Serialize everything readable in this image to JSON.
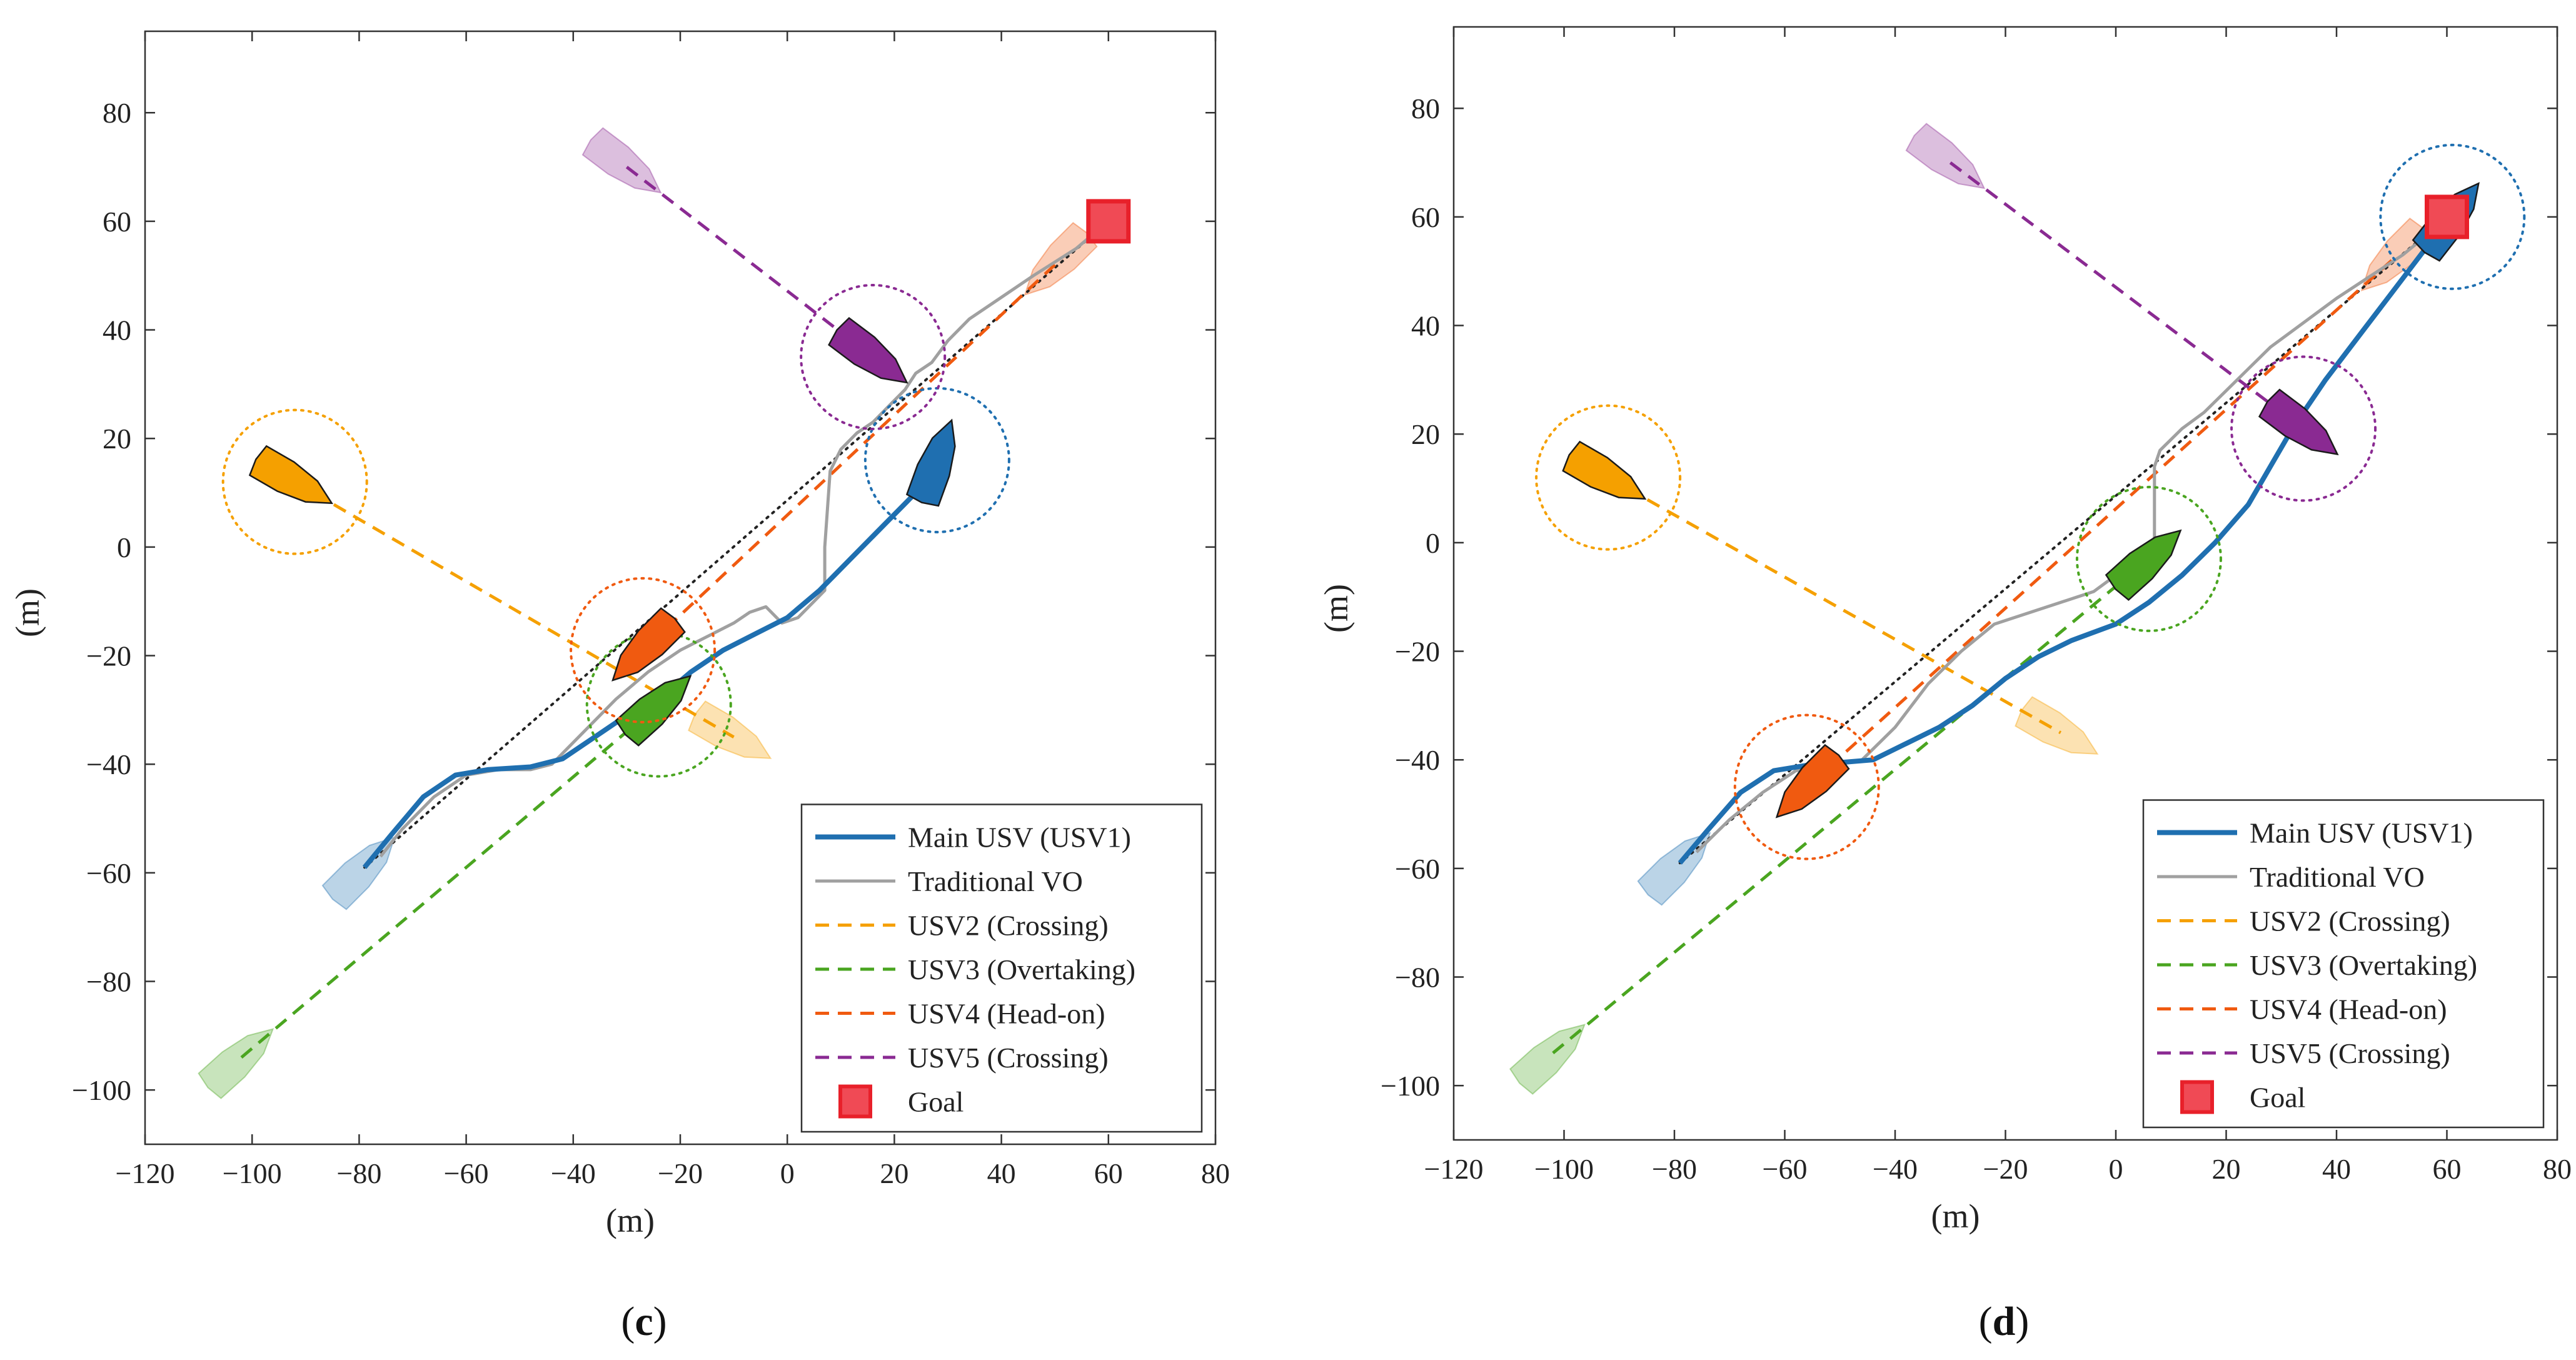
{
  "chart_data": [
    {
      "type": "line",
      "panel_label_pre": "(",
      "panel_label": "c",
      "panel_label_post": ")",
      "xlabel": "(m)",
      "ylabel": "(m)",
      "xlim": [
        -120,
        80
      ],
      "ylim": [
        -110,
        95
      ],
      "xticks": [
        -120,
        -100,
        -80,
        -60,
        -40,
        -20,
        0,
        20,
        40,
        60,
        80
      ],
      "yticks": [
        -100,
        -80,
        -60,
        -40,
        -20,
        0,
        20,
        40,
        60,
        80
      ],
      "grid": false,
      "legend_position": "bottom-right",
      "colors": {
        "usv1": "#1f6fb0",
        "vo": "#a0a0a0",
        "usv2": "#f5a000",
        "usv3": "#4aa520",
        "usv4": "#f05a10",
        "usv5": "#8a2a92",
        "goal": "#e8202a"
      },
      "series": [
        {
          "key": "usv1",
          "name": "Main USV (USV1)",
          "style": "solid",
          "x": [
            -79,
            -74,
            -68,
            -62,
            -56,
            -48,
            -42,
            -36,
            -30,
            -24,
            -18,
            -12,
            -6,
            0,
            6,
            12,
            18,
            22,
            24
          ],
          "y": [
            -59,
            -53,
            -46,
            -42,
            -41,
            -40.5,
            -39,
            -35,
            -31,
            -28,
            -23,
            -19,
            -16,
            -13,
            -8,
            -2,
            4,
            8,
            10
          ]
        },
        {
          "key": "vo",
          "name": "Traditional VO",
          "style": "solid",
          "x": [
            -76,
            -72,
            -66,
            -60,
            -54,
            -48,
            -44,
            -38,
            -32,
            -26,
            -20,
            -14,
            -10,
            -7,
            -4,
            -1,
            2,
            5,
            7,
            7,
            8,
            10,
            13,
            16,
            19,
            22,
            24,
            27,
            30,
            34,
            40,
            46,
            54,
            60
          ],
          "y": [
            -57,
            -52,
            -46,
            -42,
            -41,
            -41,
            -40,
            -34,
            -28,
            -23,
            -19,
            -16,
            -14,
            -12,
            -11,
            -14,
            -13,
            -10,
            -8,
            0,
            14,
            18,
            21,
            23,
            26,
            29,
            32,
            34,
            38,
            42,
            46,
            50,
            55,
            60
          ]
        },
        {
          "key": "usv2",
          "name": "USV2 (Crossing)",
          "style": "dashed",
          "x": [
            -92,
            -10
          ],
          "y": [
            12,
            -35
          ]
        },
        {
          "key": "usv3",
          "name": "USV3 (Overtaking)",
          "style": "dashed",
          "x": [
            -102,
            -24
          ],
          "y": [
            -94,
            -29
          ]
        },
        {
          "key": "usv4",
          "name": "USV4 (Head-on)",
          "style": "dashed",
          "x": [
            50,
            -27
          ],
          "y": [
            52,
            -19
          ]
        },
        {
          "key": "usv5",
          "name": "USV5 (Crossing)",
          "style": "dashed",
          "x": [
            -30,
            16
          ],
          "y": [
            70,
            35
          ]
        },
        {
          "key": "straight",
          "name": "",
          "style": "dotted",
          "x": [
            -79,
            60
          ],
          "y": [
            -59,
            60
          ]
        }
      ],
      "vessels": [
        {
          "key": "usv1",
          "x": -79,
          "y": -59,
          "heading": 45,
          "current": false
        },
        {
          "key": "usv1",
          "x": 28,
          "y": 16,
          "heading": 70,
          "current": true
        },
        {
          "key": "usv2",
          "x": -92,
          "y": 12,
          "heading": -30,
          "current": false
        },
        {
          "key": "usv2",
          "x": -92,
          "y": 12,
          "heading": -30,
          "current": true
        },
        {
          "key": "usv2",
          "x": -10,
          "y": -35,
          "heading": -30,
          "current": false
        },
        {
          "key": "usv3",
          "x": -102,
          "y": -94,
          "heading": 42,
          "current": false
        },
        {
          "key": "usv3",
          "x": -24,
          "y": -29,
          "heading": 42,
          "current": true
        },
        {
          "key": "usv4",
          "x": 50,
          "y": 52,
          "heading": 225,
          "current": false
        },
        {
          "key": "usv4",
          "x": -27,
          "y": -19,
          "heading": 225,
          "current": true
        },
        {
          "key": "usv5",
          "x": -30,
          "y": 70,
          "heading": -37,
          "current": false
        },
        {
          "key": "usv5",
          "x": 16,
          "y": 35,
          "heading": -37,
          "current": true
        }
      ],
      "goal": {
        "x": 60,
        "y": 60,
        "name": "Goal"
      }
    },
    {
      "type": "line",
      "panel_label_pre": "(",
      "panel_label": "d",
      "panel_label_post": ")",
      "xlabel": "(m)",
      "ylabel": "(m)",
      "xlim": [
        -120,
        80
      ],
      "ylim": [
        -110,
        95
      ],
      "xticks": [
        -120,
        -100,
        -80,
        -60,
        -40,
        -20,
        0,
        20,
        40,
        60,
        80
      ],
      "yticks": [
        -100,
        -80,
        -60,
        -40,
        -20,
        0,
        20,
        40,
        60,
        80
      ],
      "grid": false,
      "legend_position": "bottom-right",
      "colors": {
        "usv1": "#1f6fb0",
        "vo": "#a0a0a0",
        "usv2": "#f5a000",
        "usv3": "#4aa520",
        "usv4": "#f05a10",
        "usv5": "#8a2a92",
        "goal": "#e8202a"
      },
      "series": [
        {
          "key": "usv1",
          "name": "Main USV (USV1)",
          "style": "solid",
          "x": [
            -79,
            -74,
            -68,
            -62,
            -56,
            -50,
            -44,
            -38,
            -32,
            -26,
            -20,
            -14,
            -8,
            0,
            6,
            12,
            18,
            24,
            28,
            32,
            38,
            44,
            50,
            56,
            60
          ],
          "y": [
            -59,
            -53,
            -46,
            -42,
            -41,
            -40.5,
            -40,
            -37,
            -34,
            -30,
            -25,
            -21,
            -18,
            -15,
            -11,
            -6,
            0,
            7,
            14,
            21,
            30,
            38,
            46,
            54,
            60
          ]
        },
        {
          "key": "vo",
          "name": "Traditional VO",
          "style": "solid",
          "x": [
            -76,
            -70,
            -64,
            -58,
            -52,
            -46,
            -40,
            -34,
            -28,
            -22,
            -16,
            -10,
            -4,
            0,
            4,
            7,
            7,
            8,
            12,
            16,
            20,
            24,
            28,
            32,
            36,
            40,
            46,
            52,
            58
          ],
          "y": [
            -57,
            -51,
            -46,
            -42,
            -41,
            -40,
            -34,
            -26,
            -20,
            -15,
            -13,
            -11,
            -9,
            -6,
            -3,
            0,
            14,
            17,
            21,
            24,
            28,
            32,
            36,
            39,
            42,
            45,
            49,
            53,
            58
          ]
        },
        {
          "key": "usv2",
          "name": "USV2 (Crossing)",
          "style": "dashed",
          "x": [
            -92,
            -10
          ],
          "y": [
            12,
            -35
          ]
        },
        {
          "key": "usv3",
          "name": "USV3 (Overtaking)",
          "style": "dashed",
          "x": [
            -102,
            6
          ],
          "y": [
            -94,
            -3
          ]
        },
        {
          "key": "usv4",
          "name": "USV4 (Head-on)",
          "style": "dashed",
          "x": [
            50,
            -56
          ],
          "y": [
            52,
            -45
          ]
        },
        {
          "key": "usv5",
          "name": "USV5 (Crossing)",
          "style": "dashed",
          "x": [
            -30,
            34
          ],
          "y": [
            70,
            21
          ]
        },
        {
          "key": "straight",
          "name": "",
          "style": "dotted",
          "x": [
            -79,
            60
          ],
          "y": [
            -59,
            60
          ]
        }
      ],
      "vessels": [
        {
          "key": "usv1",
          "x": -79,
          "y": -59,
          "heading": 45,
          "current": false
        },
        {
          "key": "usv1",
          "x": 61,
          "y": 60,
          "heading": 52,
          "current": true
        },
        {
          "key": "usv2",
          "x": -92,
          "y": 12,
          "heading": -30,
          "current": false
        },
        {
          "key": "usv2",
          "x": -92,
          "y": 12,
          "heading": -30,
          "current": true
        },
        {
          "key": "usv2",
          "x": -10,
          "y": -35,
          "heading": -30,
          "current": false
        },
        {
          "key": "usv3",
          "x": -102,
          "y": -94,
          "heading": 42,
          "current": false
        },
        {
          "key": "usv3",
          "x": 6,
          "y": -3,
          "heading": 42,
          "current": true
        },
        {
          "key": "usv4",
          "x": 50,
          "y": 52,
          "heading": 225,
          "current": false
        },
        {
          "key": "usv4",
          "x": -56,
          "y": -45,
          "heading": 225,
          "current": true
        },
        {
          "key": "usv5",
          "x": -30,
          "y": 70,
          "heading": -37,
          "current": false
        },
        {
          "key": "usv5",
          "x": 34,
          "y": 21,
          "heading": -37,
          "current": true
        }
      ],
      "goal": {
        "x": 60,
        "y": 60,
        "name": "Goal"
      }
    }
  ]
}
